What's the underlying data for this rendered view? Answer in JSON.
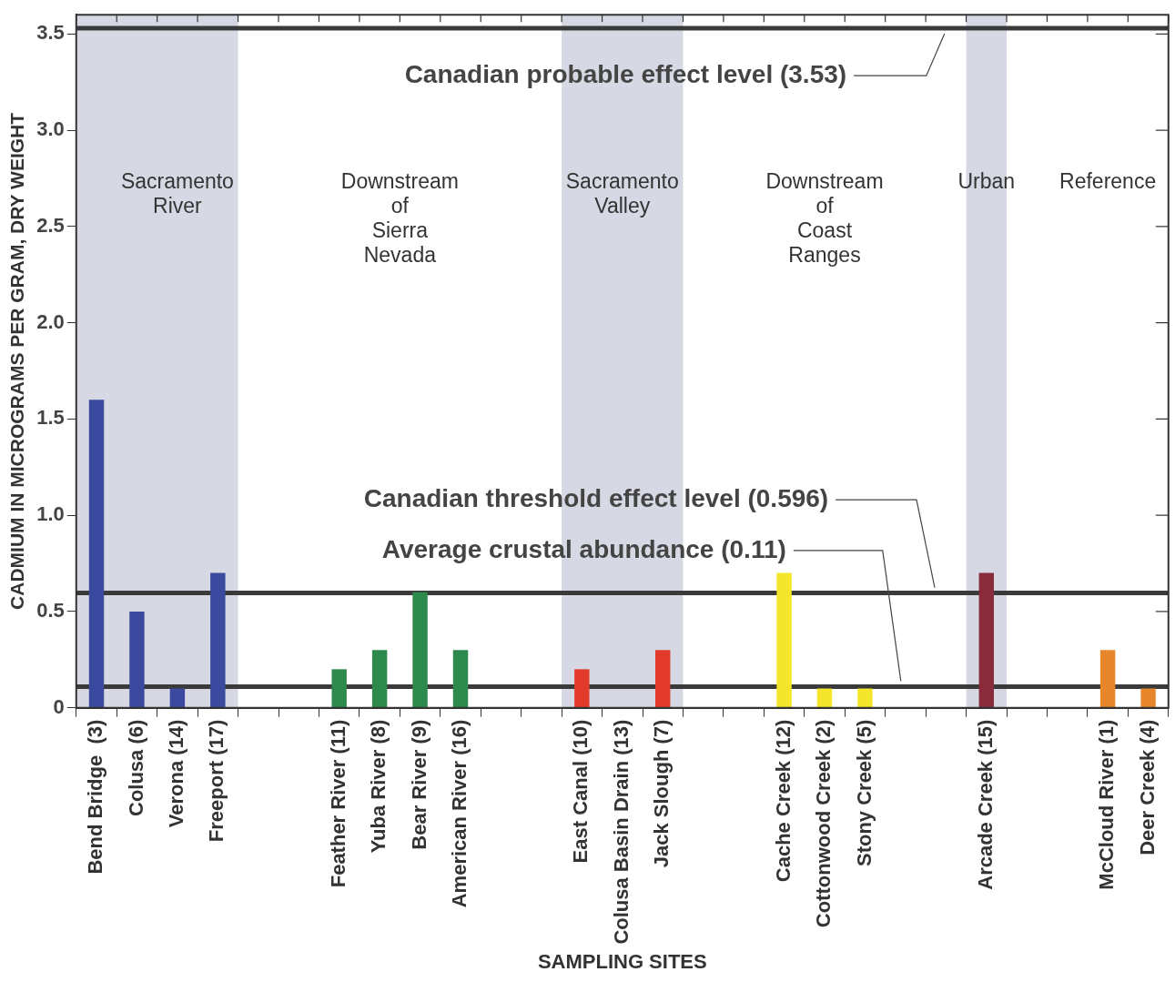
{
  "chart_data": {
    "type": "bar",
    "xlabel": "SAMPLING SITES",
    "ylabel": "CADMIUM IN MICROGRAMS PER GRAM, DRY WEIGHT",
    "categories": [
      "Bend Bridge  (3)",
      "Colusa (6)",
      "Verona (14)",
      "Freeport (17)",
      null,
      null,
      "Feather River (11)",
      "Yuba River (8)",
      "Bear River (9)",
      "American River (16)",
      null,
      null,
      "East Canal (10)",
      "Colusa Basin Drain (13)",
      "Jack Slough (7)",
      null,
      null,
      "Cache Creek (12)",
      "Cottonwood Creek (2)",
      "Stony Creek (5)",
      null,
      null,
      "Arcade Creek (15)",
      null,
      null,
      "McCloud River (1)",
      "Deer Creek (4)"
    ],
    "values": [
      1.6,
      0.5,
      0.1,
      0.7,
      null,
      null,
      0.2,
      0.3,
      0.6,
      0.3,
      null,
      null,
      0.2,
      null,
      0.3,
      null,
      null,
      0.7,
      0.1,
      0.1,
      null,
      null,
      0.7,
      null,
      null,
      0.3,
      0.1
    ],
    "colors": [
      "#3b4a9e",
      "#3b4a9e",
      "#3b4a9e",
      "#3b4a9e",
      null,
      null,
      "#2e8a4c",
      "#2e8a4c",
      "#2e8a4c",
      "#2e8a4c",
      null,
      null,
      "#e23b2c",
      "#e23b2c",
      "#e23b2c",
      null,
      null,
      "#f4e62a",
      "#f4e62a",
      "#f4e62a",
      null,
      null,
      "#8a2b3c",
      null,
      null,
      "#e8862c",
      "#e8862c"
    ],
    "ylim": [
      0,
      3.6
    ],
    "yticks": [
      0,
      {
        "value": 0.5,
        "label": "0.5"
      },
      {
        "value": 1,
        "label": "1.0"
      },
      {
        "value": 1.5,
        "label": "1.5"
      },
      {
        "value": 2,
        "label": "2.0"
      },
      {
        "value": 2.5,
        "label": "2.5"
      },
      {
        "value": 3,
        "label": "3.0"
      },
      {
        "value": 3.5,
        "label": "3.5"
      }
    ],
    "grid": false,
    "legend": false,
    "bands": [
      {
        "axis": "x",
        "from": "Bend Bridge  (3)",
        "to": "Freeport (17)",
        "color": "#d6d9e3"
      },
      {
        "axis": "x",
        "from": "East Canal (10)",
        "to": "Jack Slough (7)",
        "color": "#d6d9e3"
      },
      {
        "axis": "x",
        "from": "Arcade Creek (15)",
        "to": "Arcade Creek (15)",
        "color": "#d6d9e3"
      }
    ],
    "annotations": [
      "Sacramento\nRiver",
      "Downstream\nof\nSierra\nNevada",
      "Sacramento\nValley",
      "Downstream\nof\nCoast\nRanges",
      "Urban",
      "Reference"
    ],
    "ref_lines": [
      {
        "axis": "y",
        "value": 3.53,
        "label": "Canadian probable effect level (3.53)",
        "color": "#3a3a3a"
      },
      {
        "axis": "y",
        "value": 0.596,
        "label": "Canadian threshold effect level (0.596)",
        "color": "#3a3a3a"
      },
      {
        "axis": "y",
        "value": 0.11,
        "label": "Average crustal abundance (0.11)",
        "color": "#3a3a3a"
      }
    ]
  }
}
